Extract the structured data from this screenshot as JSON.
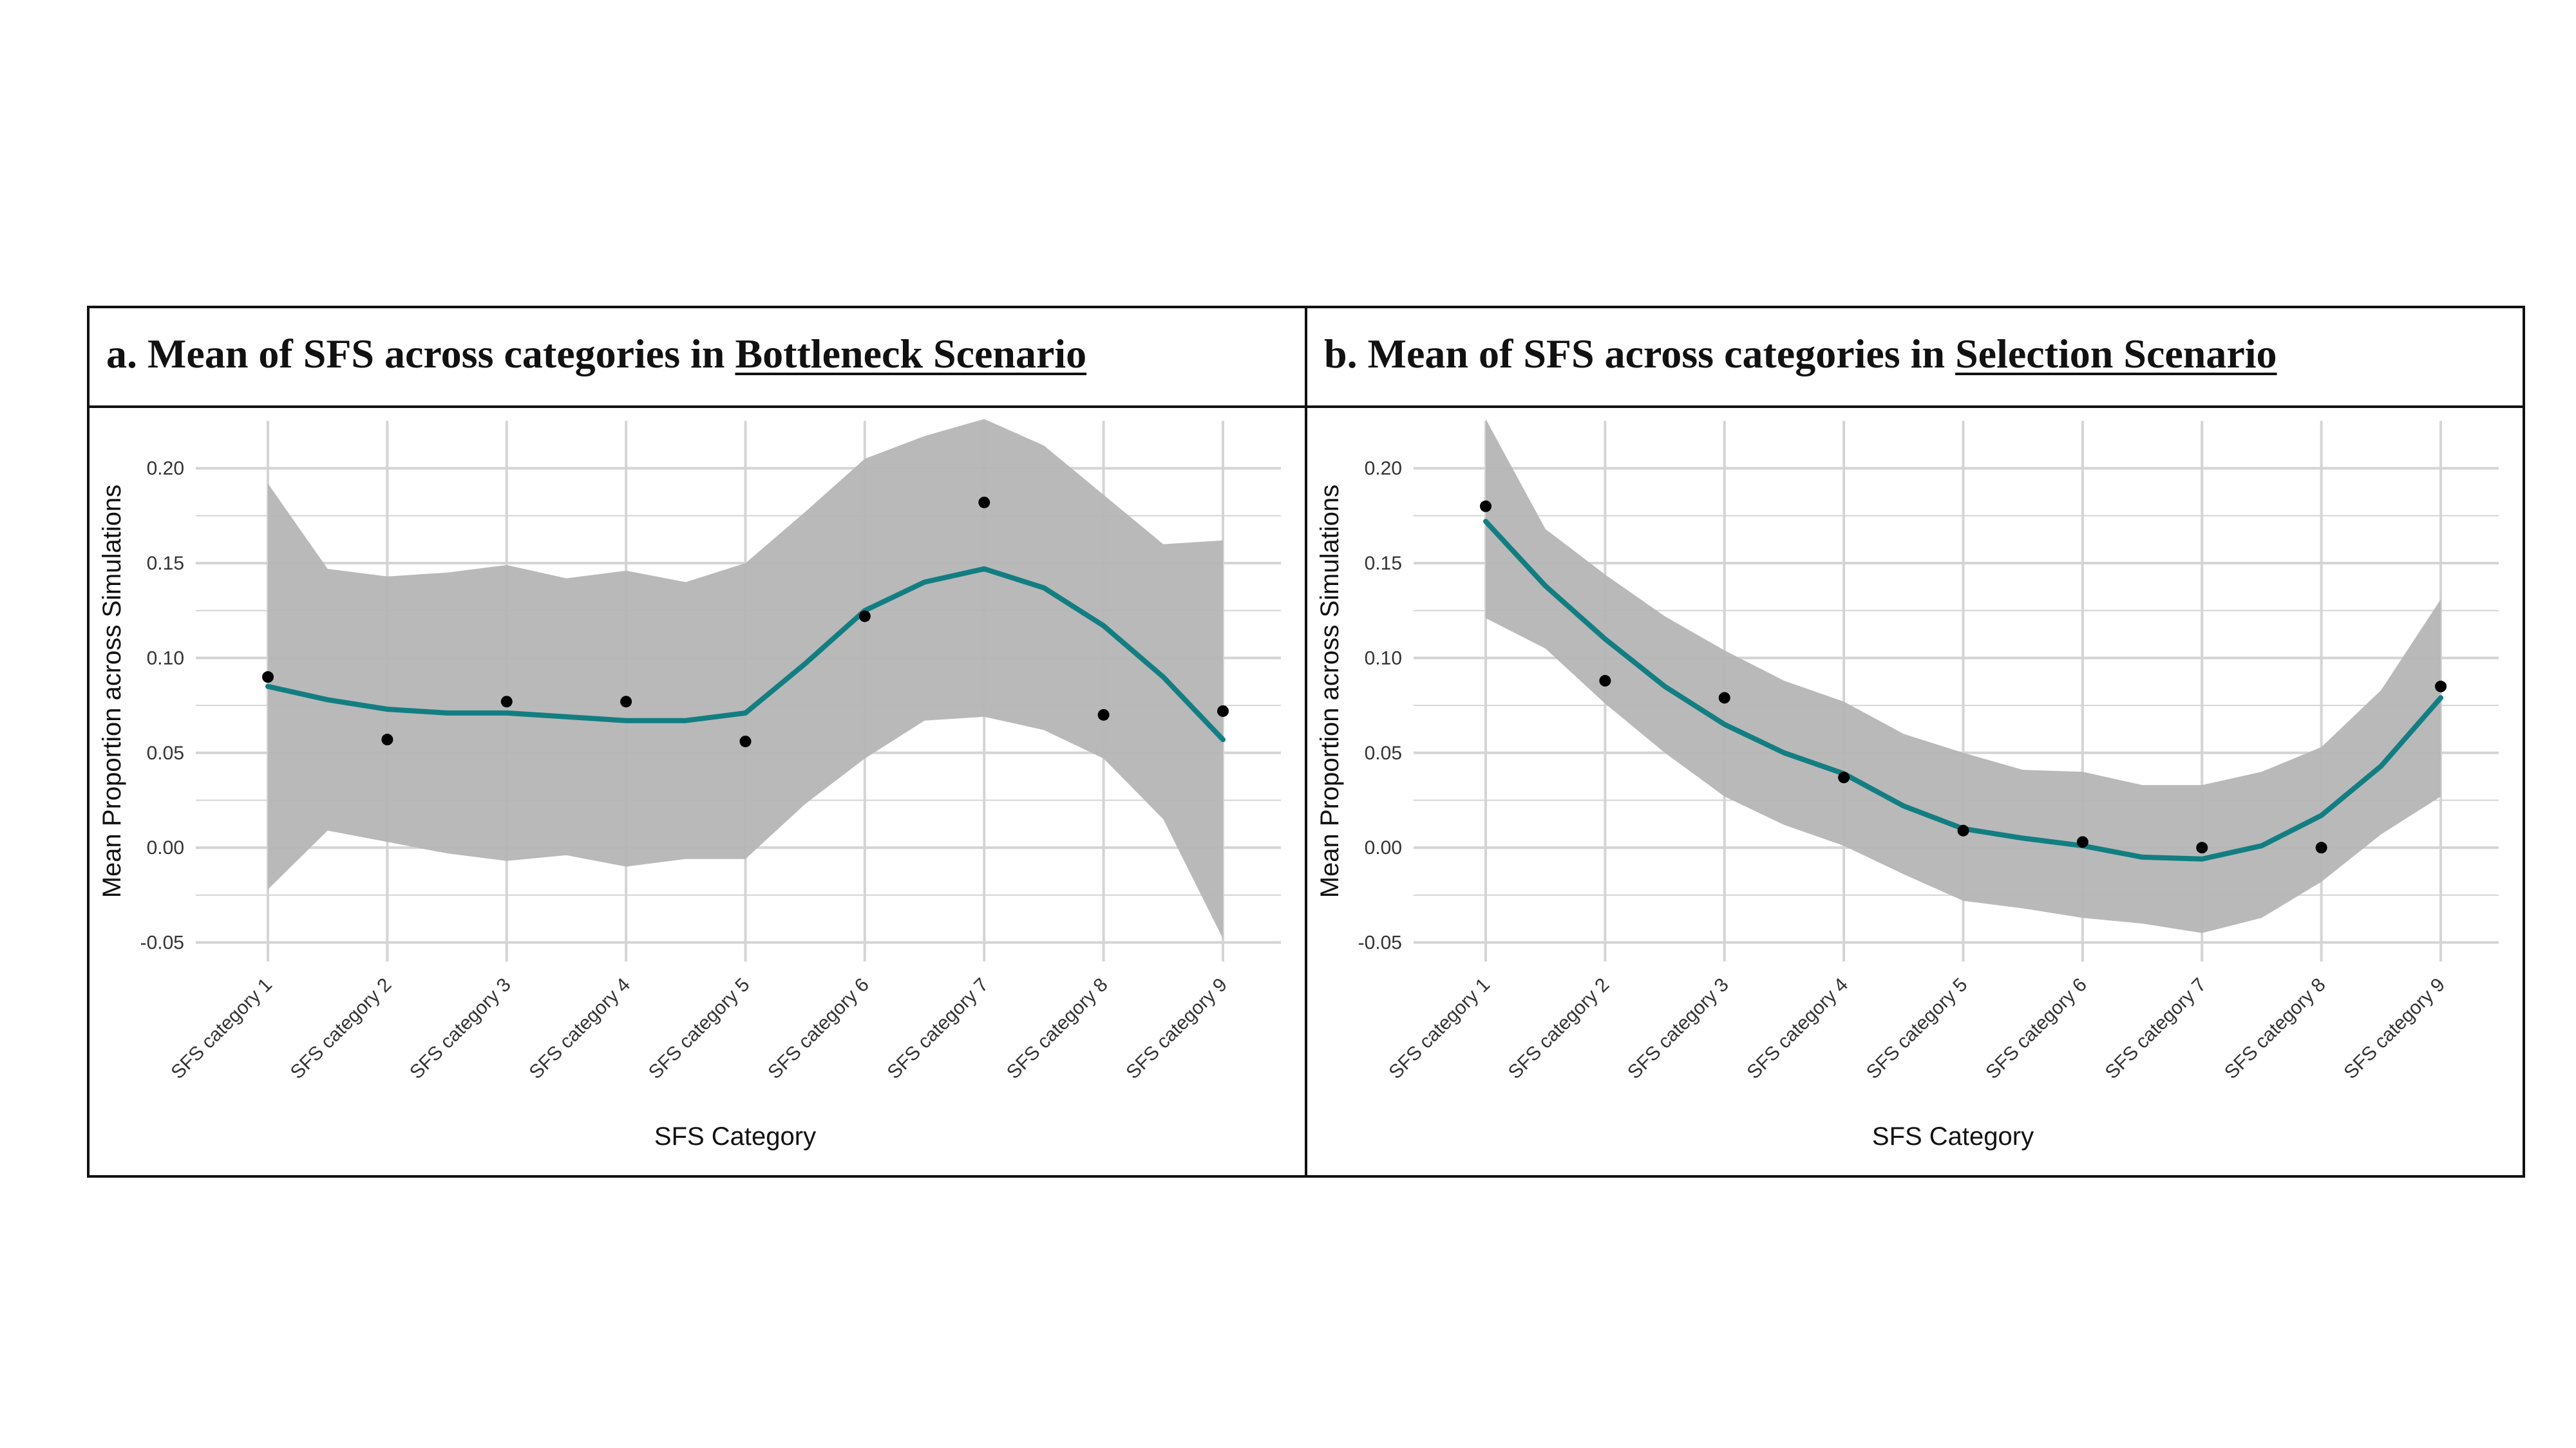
{
  "chart_data": [
    {
      "type": "scatter",
      "title_prefix": "a.  Mean of SFS across categories in ",
      "title_emphasis": "Bottleneck Scenario",
      "xlabel": "SFS Category",
      "ylabel": "Mean Proportion across Simulations",
      "categories": [
        "SFS category 1",
        "SFS category 2",
        "SFS category 3",
        "SFS category 4",
        "SFS category 5",
        "SFS category 6",
        "SFS category 7",
        "SFS category 8",
        "SFS category 9"
      ],
      "ylim": [
        -0.06,
        0.225
      ],
      "yticks": [
        -0.05,
        0.0,
        0.05,
        0.1,
        0.15,
        0.2
      ],
      "ytick_labels": [
        "-0.05",
        "0.00",
        "0.05",
        "0.10",
        "0.15",
        "0.20"
      ],
      "grid": true,
      "points": [
        0.09,
        0.057,
        0.077,
        0.077,
        0.056,
        0.122,
        0.182,
        0.07,
        0.072
      ],
      "smooth": {
        "x": [
          1,
          1.5,
          2,
          2.5,
          3,
          3.5,
          4,
          4.5,
          5,
          5.5,
          6,
          6.5,
          7,
          7.5,
          8,
          8.5,
          9
        ],
        "fit": [
          0.085,
          0.078,
          0.073,
          0.071,
          0.071,
          0.069,
          0.067,
          0.067,
          0.071,
          0.097,
          0.125,
          0.14,
          0.147,
          0.137,
          0.117,
          0.09,
          0.057
        ],
        "upper": [
          0.192,
          0.147,
          0.143,
          0.145,
          0.149,
          0.142,
          0.146,
          0.14,
          0.15,
          0.177,
          0.205,
          0.217,
          0.226,
          0.212,
          0.186,
          0.16,
          0.162
        ],
        "lower": [
          -0.022,
          0.009,
          0.003,
          -0.003,
          -0.007,
          -0.004,
          -0.01,
          -0.006,
          -0.006,
          0.023,
          0.047,
          0.067,
          0.069,
          0.062,
          0.047,
          0.015,
          -0.048
        ]
      },
      "colors": {
        "line": "#127E82",
        "band": "#B5B5B5",
        "point": "#000000",
        "grid": "#D4D4D4"
      }
    },
    {
      "type": "scatter",
      "title_prefix": "b. Mean of SFS across categories in ",
      "title_emphasis": "Selection Scenario",
      "xlabel": "SFS Category",
      "ylabel": "Mean Proportion across Simulations",
      "categories": [
        "SFS category 1",
        "SFS category 2",
        "SFS category 3",
        "SFS category 4",
        "SFS category 5",
        "SFS category 6",
        "SFS category 7",
        "SFS category 8",
        "SFS category 9"
      ],
      "ylim": [
        -0.06,
        0.225
      ],
      "yticks": [
        -0.05,
        0.0,
        0.05,
        0.1,
        0.15,
        0.2
      ],
      "ytick_labels": [
        "-0.05",
        "0.00",
        "0.05",
        "0.10",
        "0.15",
        "0.20"
      ],
      "grid": true,
      "points": [
        0.18,
        0.088,
        0.079,
        0.037,
        0.009,
        0.003,
        0.0,
        0.0,
        0.085
      ],
      "smooth": {
        "x": [
          1,
          1.5,
          2,
          2.5,
          3,
          3.5,
          4,
          4.5,
          5,
          5.5,
          6,
          6.5,
          7,
          7.5,
          8,
          8.5,
          9
        ],
        "fit": [
          0.172,
          0.138,
          0.11,
          0.085,
          0.065,
          0.05,
          0.039,
          0.022,
          0.01,
          0.005,
          0.001,
          -0.005,
          -0.006,
          0.001,
          0.017,
          0.043,
          0.079
        ],
        "upper": [
          0.226,
          0.168,
          0.144,
          0.122,
          0.104,
          0.088,
          0.077,
          0.06,
          0.05,
          0.041,
          0.04,
          0.033,
          0.033,
          0.04,
          0.053,
          0.083,
          0.131
        ],
        "lower": [
          0.121,
          0.105,
          0.076,
          0.05,
          0.027,
          0.012,
          0.001,
          -0.014,
          -0.028,
          -0.032,
          -0.037,
          -0.04,
          -0.045,
          -0.037,
          -0.018,
          0.007,
          0.027
        ]
      },
      "colors": {
        "line": "#127E82",
        "band": "#B5B5B5",
        "point": "#000000",
        "grid": "#D4D4D4"
      }
    }
  ]
}
